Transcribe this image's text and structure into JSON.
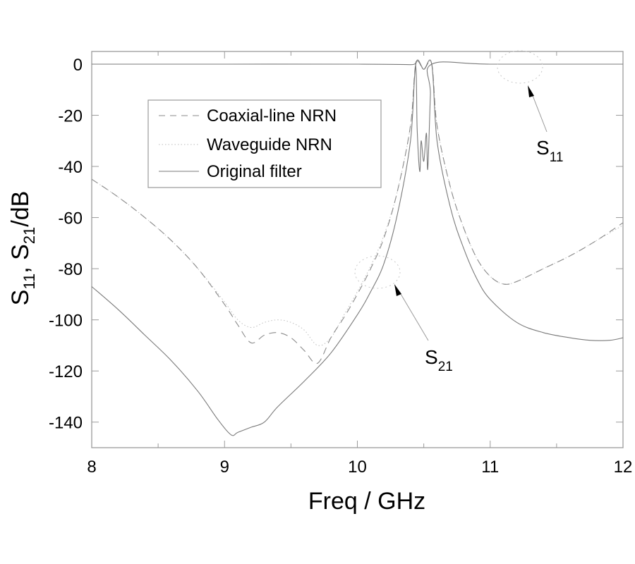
{
  "chart_data": {
    "type": "line",
    "title": "",
    "xlabel": "Freq / GHz",
    "ylabel": "S11, S21/dB",
    "xlim": [
      8,
      12
    ],
    "ylim": [
      -150,
      5
    ],
    "x_ticks": [
      8,
      9,
      10,
      11,
      12
    ],
    "x_tick_labels": [
      "8",
      "9",
      "10",
      "11",
      "12"
    ],
    "y_ticks": [
      0,
      -20,
      -40,
      -60,
      -80,
      -100,
      -120,
      -140
    ],
    "y_tick_labels": [
      "0",
      "-20",
      "-40",
      "-60",
      "-80",
      "-100",
      "-120",
      "-140"
    ],
    "grid": false,
    "legend": {
      "position": "upper-left-inside",
      "entries": [
        {
          "label": "Coaxial-line NRN",
          "style": "dashed"
        },
        {
          "label": "Waveguide NRN",
          "style": "dotted"
        },
        {
          "label": "Original filter",
          "style": "solid"
        }
      ]
    },
    "annotations": [
      {
        "text": "S",
        "sub": "11",
        "x": 11.25,
        "y": -37,
        "arrow_to": [
          11.2,
          -7
        ]
      },
      {
        "text": "S",
        "sub": "21",
        "x": 10.3,
        "y": -117,
        "arrow_to": [
          10.15,
          -87
        ]
      }
    ],
    "series": [
      {
        "name": "Coaxial-line NRN S21",
        "style": "dashed",
        "x": [
          8.0,
          8.2,
          8.4,
          8.6,
          8.8,
          9.0,
          9.1,
          9.2,
          9.3,
          9.4,
          9.5,
          9.6,
          9.7,
          9.8,
          9.9,
          10.0,
          10.1,
          10.2,
          10.3,
          10.4,
          10.44,
          10.5,
          10.56,
          10.6,
          10.7,
          10.8,
          10.9,
          11.0,
          11.1,
          11.2,
          11.4,
          11.6,
          11.8,
          12.0
        ],
        "values": [
          -45,
          -52,
          -60,
          -69,
          -80,
          -94,
          -102,
          -109,
          -106,
          -105,
          -107,
          -112,
          -117,
          -107,
          -99,
          -90,
          -80,
          -68,
          -50,
          -24,
          0,
          -2,
          0,
          -24,
          -48,
          -64,
          -76,
          -83,
          -86,
          -85,
          -80,
          -75,
          -69,
          -62
        ]
      },
      {
        "name": "Waveguide NRN S21",
        "style": "dotted",
        "x": [
          8.0,
          8.2,
          8.4,
          8.6,
          8.8,
          9.0,
          9.1,
          9.2,
          9.3,
          9.4,
          9.5,
          9.6,
          9.7,
          9.8,
          9.9,
          10.0,
          10.1,
          10.2,
          10.3,
          10.4,
          10.44,
          10.5,
          10.56,
          10.6,
          10.7,
          10.8,
          10.9,
          11.0,
          11.1,
          11.2,
          11.4,
          11.6,
          11.8,
          12.0
        ],
        "values": [
          -45,
          -52,
          -60,
          -69,
          -80,
          -93,
          -100,
          -103,
          -101,
          -100,
          -101,
          -104,
          -110,
          -107,
          -98,
          -89,
          -79,
          -67,
          -50,
          -24,
          0,
          -2,
          0,
          -24,
          -48,
          -64,
          -76,
          -83,
          -86,
          -85,
          -80,
          -75,
          -69,
          -63
        ]
      },
      {
        "name": "Original filter S21",
        "style": "solid",
        "x": [
          8.0,
          8.2,
          8.4,
          8.6,
          8.8,
          8.95,
          9.05,
          9.1,
          9.2,
          9.3,
          9.4,
          9.6,
          9.8,
          10.0,
          10.1,
          10.2,
          10.3,
          10.4,
          10.44,
          10.5,
          10.56,
          10.6,
          10.7,
          10.8,
          10.9,
          11.0,
          11.2,
          11.4,
          11.6,
          11.75,
          11.9,
          12.0
        ],
        "values": [
          -87,
          -96,
          -106,
          -116,
          -128,
          -139,
          -145,
          -144,
          -142,
          -140,
          -134,
          -124,
          -113,
          -98,
          -89,
          -78,
          -59,
          -30,
          0,
          -2,
          0,
          -30,
          -56,
          -72,
          -84,
          -92,
          -101,
          -105,
          -107,
          -108,
          -108,
          -107
        ]
      },
      {
        "name": "S11 (all filters)",
        "style": "solid",
        "x": [
          8.0,
          9.0,
          10.0,
          10.4,
          10.44,
          10.45,
          10.47,
          10.48,
          10.5,
          10.52,
          10.53,
          10.55,
          10.56,
          11.0,
          12.0
        ],
        "values": [
          0,
          0,
          0,
          -0.2,
          -1,
          -25,
          -42,
          -30,
          -38,
          -27,
          -41,
          -12,
          0,
          0,
          0
        ]
      }
    ]
  }
}
